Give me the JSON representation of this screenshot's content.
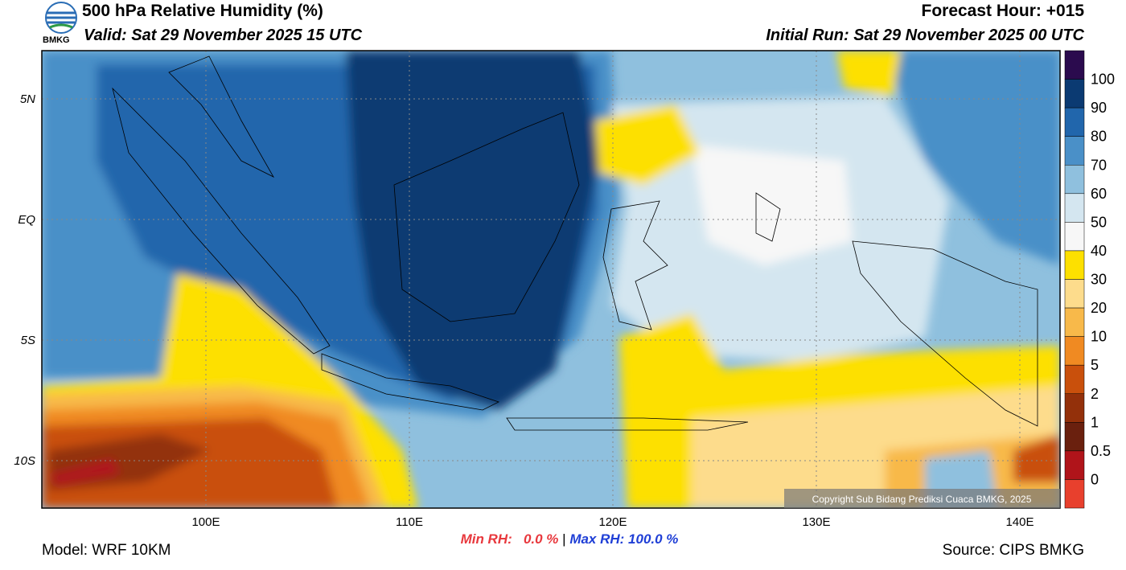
{
  "header": {
    "logo": "BMKG",
    "title": "500 hPa Relative Humidity (%)",
    "valid": "Valid: Sat 29 November 2025 15 UTC",
    "forecast_hour": "Forecast Hour: +015",
    "initial_run": "Initial Run: Sat 29 November 2025 00 UTC"
  },
  "map": {
    "lat_labels": [
      "5N",
      "EQ",
      "5S",
      "10S"
    ],
    "lon_labels": [
      "100E",
      "110E",
      "120E",
      "130E",
      "140E"
    ],
    "copyright": "Copyright Sub Bidang Prediksi Cuaca BMKG, 2025"
  },
  "colorbar": {
    "labels": [
      100,
      90,
      80,
      70,
      60,
      50,
      40,
      30,
      20,
      10,
      5,
      2,
      1,
      0.5,
      0
    ],
    "colors": [
      "#2b0b4e",
      "#0b3a72",
      "#2166ac",
      "#4a90c8",
      "#8fc0de",
      "#d4e6f0",
      "#f7f7f7",
      "#fde000",
      "#fddc8c",
      "#f8b94a",
      "#f08a22",
      "#c9500c",
      "#93300a",
      "#6a200e",
      "#b0141a",
      "#e8402d"
    ]
  },
  "footer": {
    "model": "Model: WRF 10KM",
    "min_rh": "Min RH:   0.0 %",
    "separator": "|",
    "max_rh": "Max RH: 100.0 %",
    "source": "Source: CIPS BMKG"
  }
}
